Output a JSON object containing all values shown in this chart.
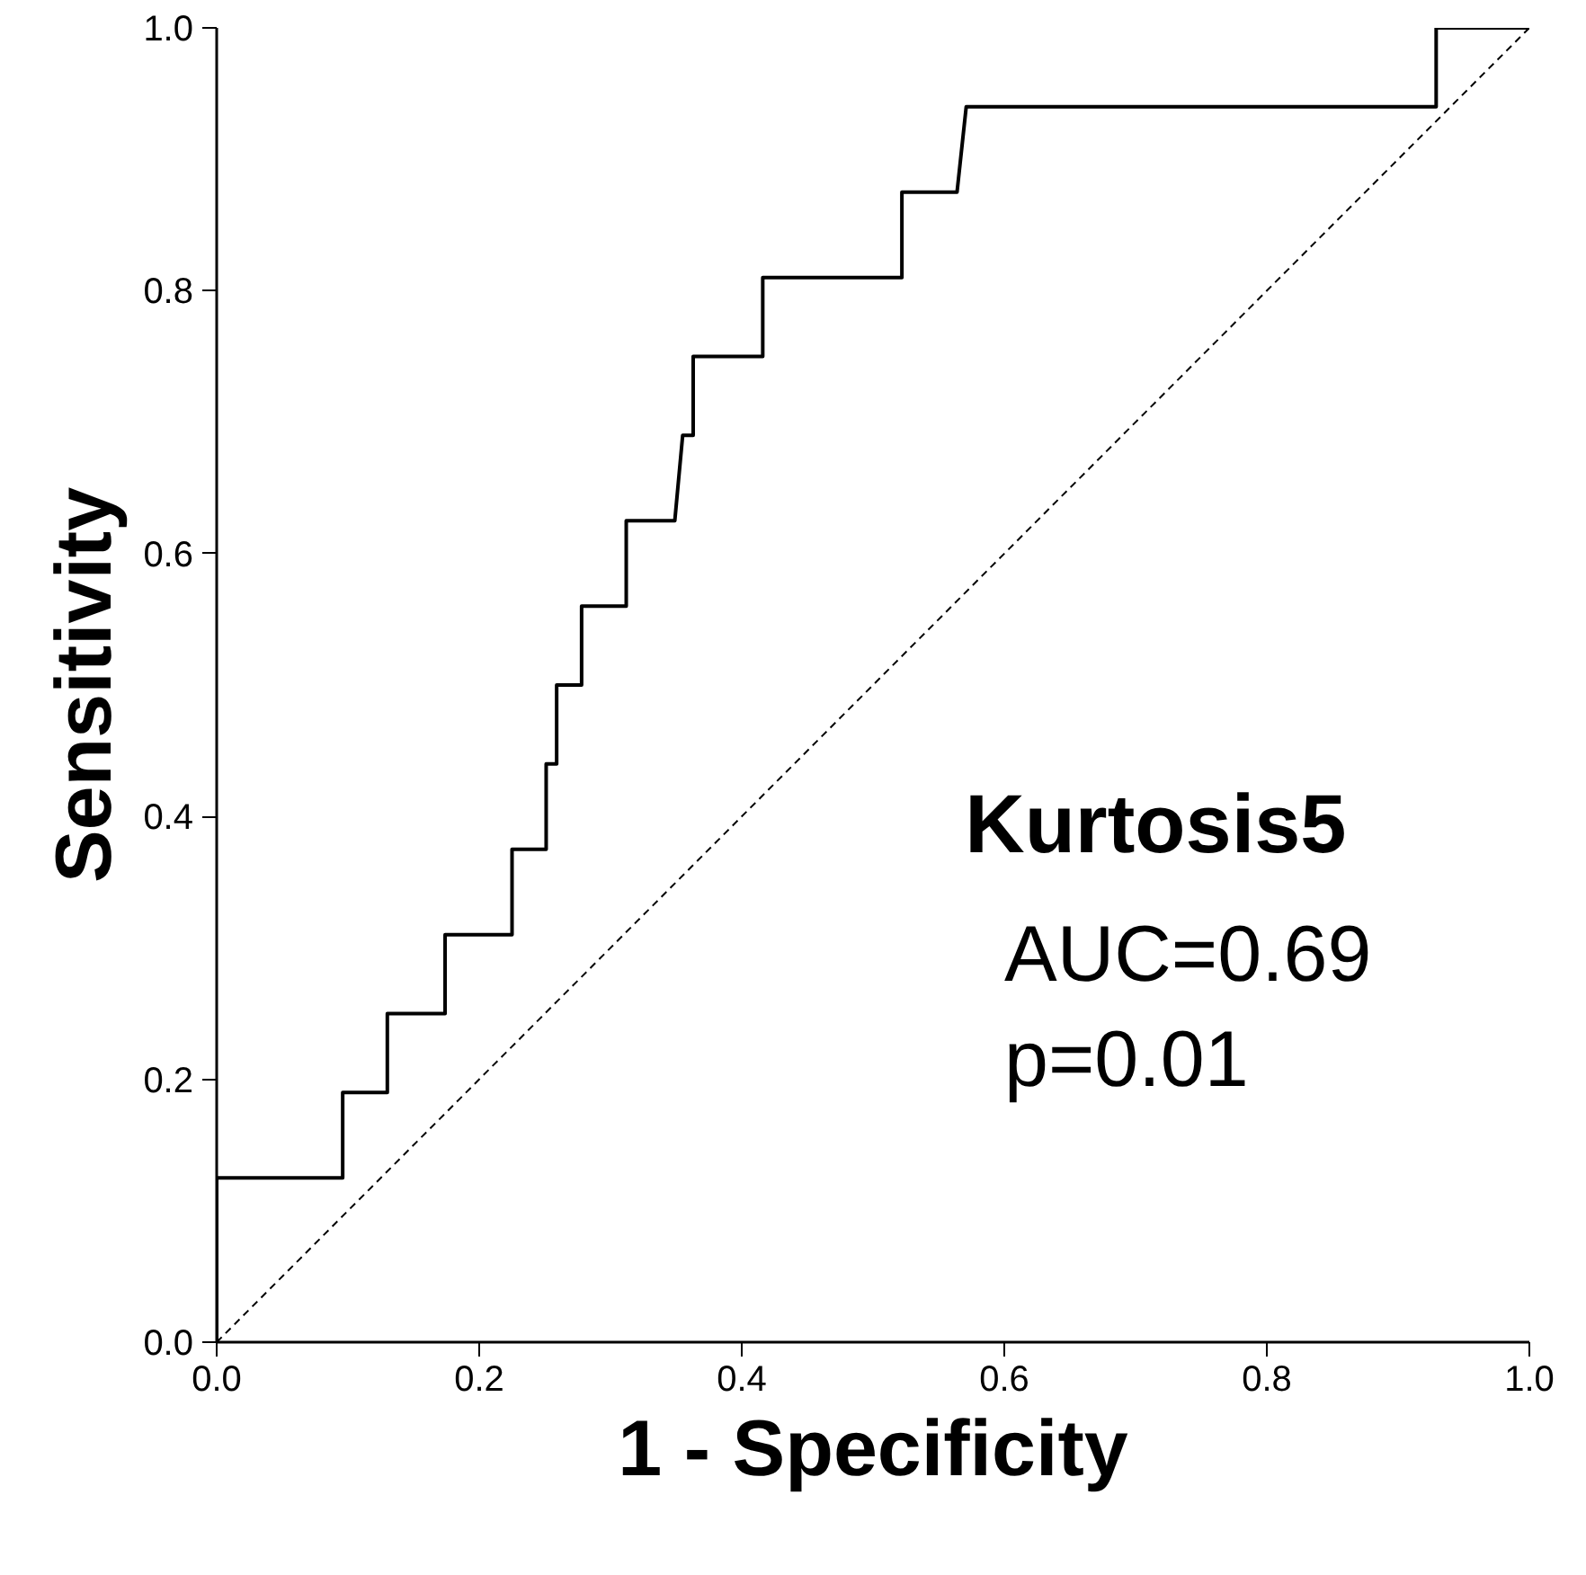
{
  "chart_data": {
    "type": "line",
    "xlabel": "1 - Specificity",
    "ylabel": "Sensitivity",
    "xlim": [
      0,
      1
    ],
    "ylim": [
      0,
      1
    ],
    "xticks": [
      {
        "value": 0,
        "label": "0.0"
      },
      {
        "value": 0.2,
        "label": "0.2"
      },
      {
        "value": 0.4,
        "label": "0.4"
      },
      {
        "value": 0.6,
        "label": "0.6"
      },
      {
        "value": 0.8,
        "label": "0.8"
      },
      {
        "value": 1,
        "label": "1.0"
      }
    ],
    "yticks": [
      {
        "value": 0,
        "label": "0.0"
      },
      {
        "value": 0.2,
        "label": "0.2"
      },
      {
        "value": 0.4,
        "label": "0.4"
      },
      {
        "value": 0.6,
        "label": "0.6"
      },
      {
        "value": 0.8,
        "label": "0.8"
      },
      {
        "value": 1,
        "label": "1.0"
      }
    ],
    "grid": false,
    "marker": "none",
    "series": [
      {
        "color": "#000000",
        "line_style": "solid",
        "x": [
          0,
          0,
          0.096,
          0.096,
          0.13,
          0.13,
          0.174,
          0.174,
          0.225,
          0.225,
          0.251,
          0.251,
          0.259,
          0.259,
          0.278,
          0.278,
          0.312,
          0.312,
          0.349,
          0.355,
          0.363,
          0.363,
          0.416,
          0.416,
          0.522,
          0.522,
          0.564,
          0.571,
          0.929,
          0.929,
          1
        ],
        "values": [
          0,
          0.125,
          0.125,
          0.19,
          0.19,
          0.25,
          0.25,
          0.31,
          0.31,
          0.375,
          0.375,
          0.44,
          0.44,
          0.5,
          0.5,
          0.56,
          0.56,
          0.625,
          0.625,
          0.69,
          0.69,
          0.75,
          0.75,
          0.81,
          0.81,
          0.875,
          0.875,
          0.94,
          0.94,
          1,
          1
        ]
      },
      {
        "color": "#000000",
        "line_style": "dashed",
        "x": [
          0,
          1
        ],
        "values": [
          0,
          1
        ]
      }
    ],
    "annotations": [
      "Kurtosis5",
      "AUC=0.69",
      "p=0.01"
    ]
  }
}
